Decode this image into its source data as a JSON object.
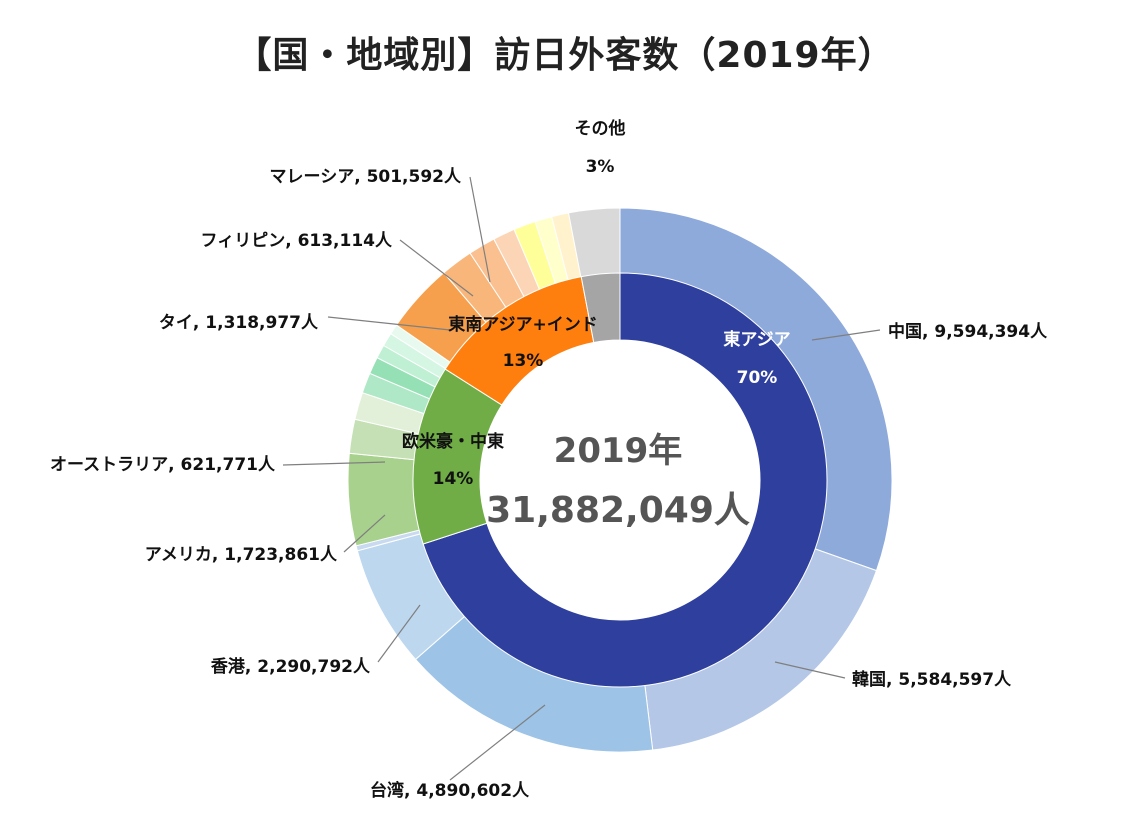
{
  "title": "【国・地域別】訪日外客数（2019年）",
  "center": {
    "year": "2019年",
    "total": "31,882,049人"
  },
  "chart_data": {
    "type": "donut",
    "title": "【国・地域別】訪日外客数（2019年）",
    "inner_ring": [
      {
        "name": "東アジア",
        "percent": 70,
        "label": "70%",
        "color": "#2e3f9e",
        "text_color": "#ffffff"
      },
      {
        "name": "欧米豪・中東",
        "percent": 14,
        "label": "14%",
        "color": "#70ad47",
        "text_color": "#111111"
      },
      {
        "name": "東南アジア+インド",
        "percent": 13,
        "label": "13%",
        "color": "#ff7f0e",
        "text_color": "#111111"
      },
      {
        "name": "その他",
        "percent": 3,
        "label": "3%",
        "color": "#a5a5a5",
        "text_color": "#111111"
      }
    ],
    "outer_ring": [
      {
        "name": "中国",
        "value": 9594394,
        "label": "中国, 9,594,394人",
        "color": "#8eaadb"
      },
      {
        "name": "韓国",
        "value": 5584597,
        "label": "韓国, 5,584,597人",
        "color": "#b4c7e7"
      },
      {
        "name": "台湾",
        "value": 4890602,
        "label": "台湾, 4,890,602人",
        "color": "#9dc3e6"
      },
      {
        "name": "香港",
        "value": 2290792,
        "label": "香港, 2,290,792人",
        "color": "#bdd7ee"
      },
      {
        "name": "その他東アジア",
        "value": 0,
        "label": "",
        "color": "#c9daf0"
      },
      {
        "name": "アメリカ",
        "value": 1723861,
        "label": "アメリカ, 1,723,861人",
        "color": "#a9d18e"
      },
      {
        "name": "オーストラリア",
        "value": 621771,
        "label": "オーストラリア, 621,771人",
        "color": "#c5e0b4"
      },
      {
        "name": "欧米豪・中東その他1",
        "value": 0,
        "label": "",
        "color": "#e2f0d9"
      },
      {
        "name": "欧米豪・中東その他2",
        "value": 0,
        "label": "",
        "color": "#aee8c6"
      },
      {
        "name": "欧米豪・中東その他3",
        "value": 0,
        "label": "",
        "color": "#96e0b6"
      },
      {
        "name": "欧米豪・中東その他4",
        "value": 0,
        "label": "",
        "color": "#bff0d4"
      },
      {
        "name": "欧米豪・中東その他5",
        "value": 0,
        "label": "",
        "color": "#d4f6e3"
      },
      {
        "name": "欧米豪・中東その他6",
        "value": 0,
        "label": "",
        "color": "#e8faef"
      },
      {
        "name": "タイ",
        "value": 1318977,
        "label": "タイ, 1,318,977人",
        "color": "#f6a04d"
      },
      {
        "name": "フィリピン",
        "value": 613114,
        "label": "フィリピン, 613,114人",
        "color": "#f8b67a"
      },
      {
        "name": "マレーシア",
        "value": 501592,
        "label": "マレーシア, 501,592人",
        "color": "#fac090"
      },
      {
        "name": "東南アジア+インドその他1",
        "value": 0,
        "label": "",
        "color": "#fbd5b5"
      },
      {
        "name": "東南アジア+インドその他2",
        "value": 0,
        "label": "",
        "color": "#ffff99"
      },
      {
        "name": "東南アジア+インドその他3",
        "value": 0,
        "label": "",
        "color": "#ffffcc"
      },
      {
        "name": "東南アジア+インドその他4",
        "value": 0,
        "label": "",
        "color": "#fff2cc"
      },
      {
        "name": "その他",
        "value": 0,
        "label": "",
        "color": "#d9d9d9"
      }
    ],
    "outer_ring_shares_percent": [
      30.1,
      17.5,
      15.3,
      7.2,
      0.3,
      5.4,
      2.0,
      1.6,
      1.2,
      1.0,
      0.8,
      0.8,
      0.6,
      4.1,
      1.9,
      1.6,
      1.3,
      1.3,
      1.0,
      1.0,
      3.0
    ]
  }
}
